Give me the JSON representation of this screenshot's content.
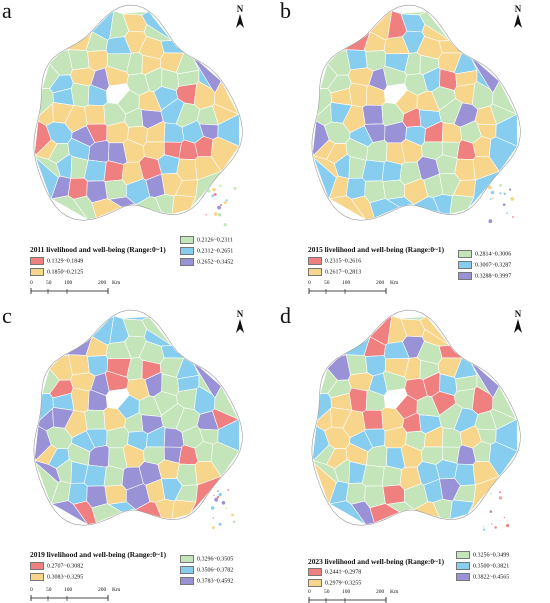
{
  "colors": {
    "class1": "#f08080",
    "class2": "#f7d58b",
    "class3": "#c4e5b9",
    "class4": "#87cdef",
    "class5": "#9a92d6"
  },
  "north_symbol": "N",
  "scale_bar": {
    "ticks": [
      "0",
      "50",
      "100",
      "200"
    ],
    "unit": "Km"
  },
  "panels": [
    {
      "letter": "a",
      "legend_title": "2011  livelihood and well-being (Range:0~1)",
      "classes": [
        {
          "label": "0.1329~0.1849",
          "color_key": "class1"
        },
        {
          "label": "0.1850~0.2125",
          "color_key": "class2"
        },
        {
          "label": "0.2126~0.2311",
          "color_key": "class3"
        },
        {
          "label": "0.2312~0.2651",
          "color_key": "class4"
        },
        {
          "label": "0.2652~0.3452",
          "color_key": "class5"
        }
      ]
    },
    {
      "letter": "b",
      "legend_title": "2015  livelihood and well-being (Range:0~1)",
      "classes": [
        {
          "label": "0.2315~0.2616",
          "color_key": "class1"
        },
        {
          "label": "0.2617~0.2813",
          "color_key": "class2"
        },
        {
          "label": "0.2814~0.3006",
          "color_key": "class3"
        },
        {
          "label": "0.3007~0.3287",
          "color_key": "class4"
        },
        {
          "label": "0.3288~0.3997",
          "color_key": "class5"
        }
      ]
    },
    {
      "letter": "c",
      "legend_title": "2019  livelihood and well-being (Range:0~1)",
      "classes": [
        {
          "label": "0.2707~0.3082",
          "color_key": "class1"
        },
        {
          "label": "0.3083~0.3295",
          "color_key": "class2"
        },
        {
          "label": "0.3296~0.3505",
          "color_key": "class3"
        },
        {
          "label": "0.3506~0.3782",
          "color_key": "class4"
        },
        {
          "label": "0.3783~0.4592",
          "color_key": "class5"
        }
      ]
    },
    {
      "letter": "d",
      "legend_title": "2023  livelihood and well-being (Range:0~1)",
      "classes": [
        {
          "label": "0.2441~0.2978",
          "color_key": "class1"
        },
        {
          "label": "0.2979~0.3255",
          "color_key": "class2"
        },
        {
          "label": "0.3256~0.3499",
          "color_key": "class3"
        },
        {
          "label": "0.3500~0.3821",
          "color_key": "class4"
        },
        {
          "label": "0.3822~0.4565",
          "color_key": "class5"
        }
      ]
    }
  ]
}
